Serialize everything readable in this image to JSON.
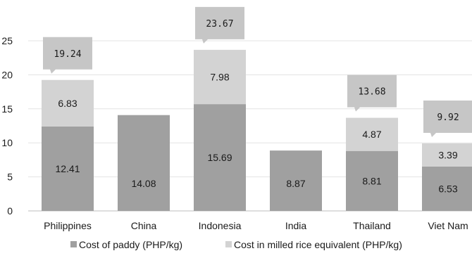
{
  "chart_data": {
    "type": "bar",
    "stacked": true,
    "categories": [
      "Philippines",
      "China",
      "Indonesia",
      "India",
      "Thailand",
      "Viet Nam"
    ],
    "series": [
      {
        "name": "Cost of paddy (PHP/kg)",
        "values": [
          12.41,
          14.08,
          15.69,
          8.87,
          8.81,
          6.53
        ],
        "color": "#a0a0a0"
      },
      {
        "name": "Cost in milled rice equivalent  (PHP/kg)",
        "values": [
          6.83,
          null,
          7.98,
          null,
          4.87,
          3.39
        ],
        "color": "#d3d3d3"
      }
    ],
    "totals": [
      19.24,
      null,
      23.67,
      null,
      13.68,
      9.92
    ],
    "callout_color": "#c6c6c6",
    "yticks": [
      0,
      5,
      10,
      15,
      20,
      25
    ],
    "ylim": [
      0,
      25
    ],
    "grid": true,
    "legend_position": "bottom"
  }
}
